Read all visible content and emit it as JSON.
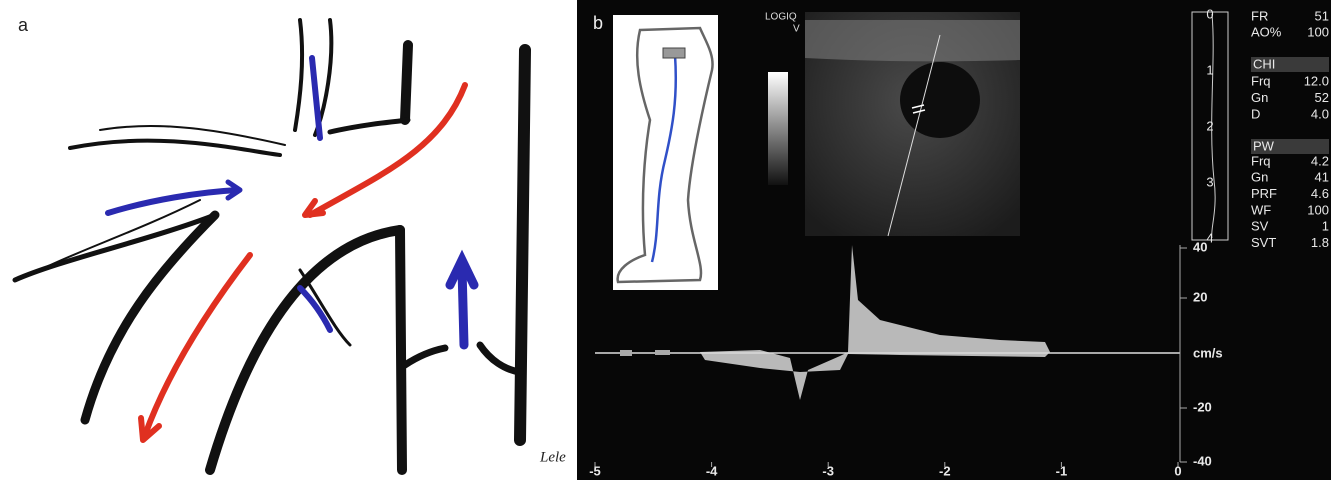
{
  "panel_a": {
    "label": "a",
    "signature": "Lele"
  },
  "panel_b": {
    "label": "b",
    "system": "LOGIQ",
    "probe": "V",
    "depth_scale": [
      "0",
      "1",
      "2",
      "3",
      "4"
    ],
    "parameters_top": [
      {
        "name": "FR",
        "value": "51"
      },
      {
        "name": "AO%",
        "value": "100"
      }
    ],
    "chi": {
      "title": "CHI",
      "rows": [
        {
          "name": "Frq",
          "value": "12.0"
        },
        {
          "name": "Gn",
          "value": "52"
        },
        {
          "name": "D",
          "value": "4.0"
        }
      ]
    },
    "pw": {
      "title": "PW",
      "rows": [
        {
          "name": "Frq",
          "value": "4.2"
        },
        {
          "name": "Gn",
          "value": "41"
        },
        {
          "name": "PRF",
          "value": "4.6"
        },
        {
          "name": "WF",
          "value": "100"
        },
        {
          "name": "SV",
          "value": "1"
        },
        {
          "name": "SVT",
          "value": "1.8"
        }
      ]
    },
    "velocity_axis": {
      "labels": [
        "40",
        "20",
        "-20",
        "-40"
      ],
      "unit": "cm/s"
    },
    "time_axis": [
      "-5",
      "-4",
      "-3",
      "-2",
      "-1",
      "0"
    ]
  }
}
